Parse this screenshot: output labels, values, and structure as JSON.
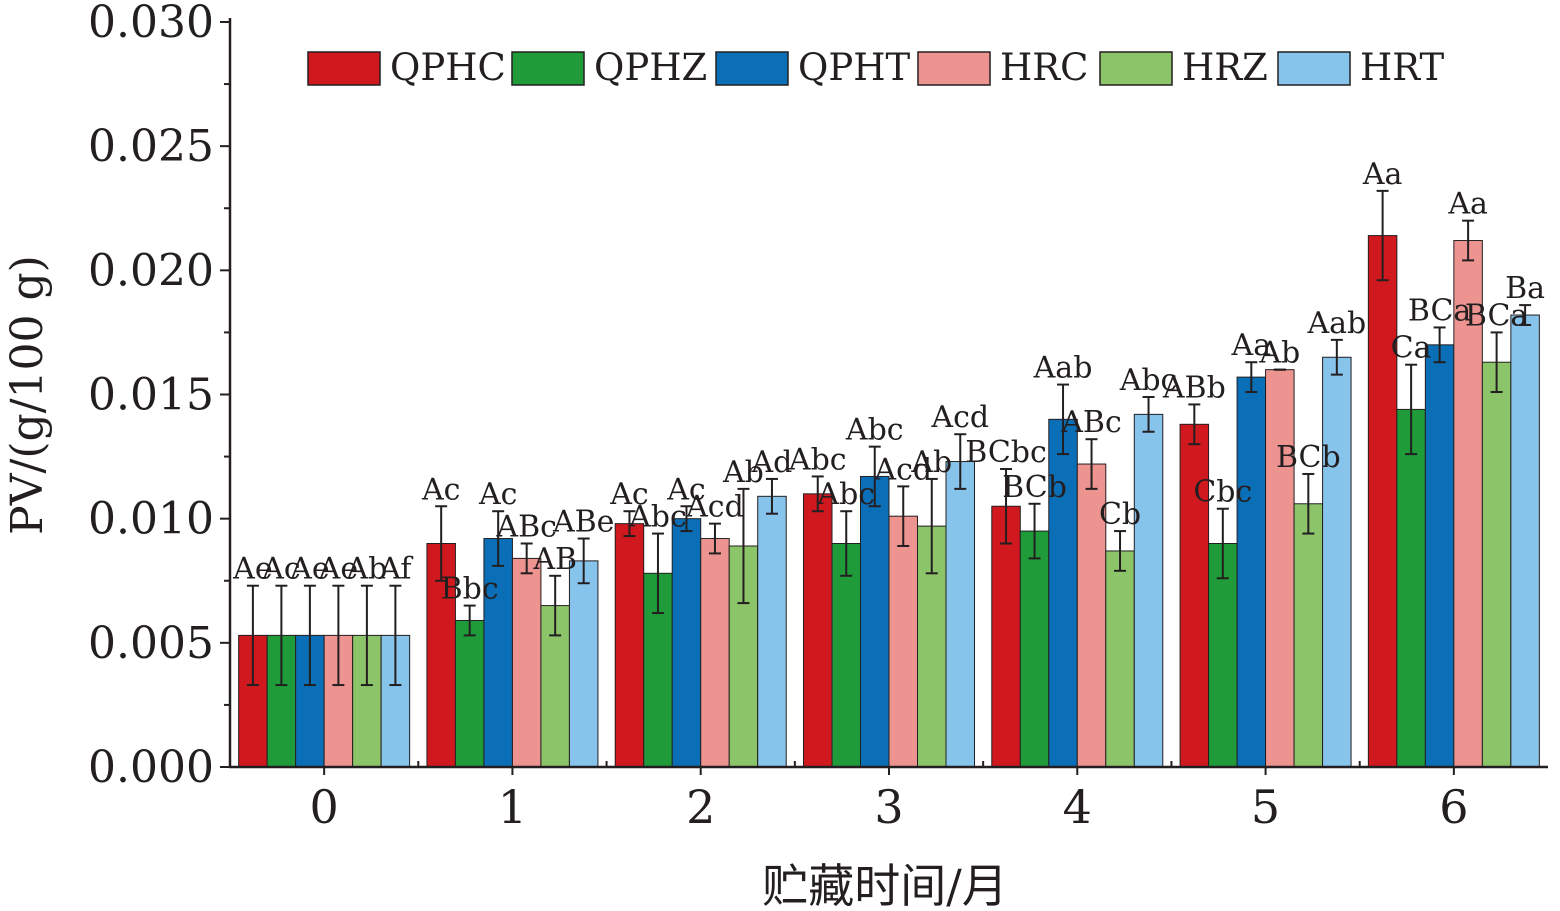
{
  "chart_data": {
    "type": "bar",
    "title": "",
    "xlabel": "贮藏时间/月",
    "ylabel": "PV/(g/100 g)",
    "ylim": [
      0,
      0.03
    ],
    "yticks": [
      "0.000",
      "0.005",
      "0.010",
      "0.015",
      "0.020",
      "0.025",
      "0.030"
    ],
    "categories": [
      "0",
      "1",
      "2",
      "3",
      "4",
      "5",
      "6"
    ],
    "legend_position": "top",
    "series": [
      {
        "name": "QPHC",
        "color": "#d0181f",
        "values": [
          0.0053,
          0.009,
          0.0098,
          0.011,
          0.0105,
          0.0138,
          0.0214
        ],
        "errors": [
          0.002,
          0.0015,
          0.0005,
          0.0007,
          0.0015,
          0.0008,
          0.0018
        ],
        "labels": [
          "Ae",
          "Ac",
          "Ac",
          "Abc",
          "BCbc",
          "ABb",
          "Aa"
        ]
      },
      {
        "name": "QPHZ",
        "color": "#1f9b3a",
        "values": [
          0.0053,
          0.0059,
          0.0078,
          0.009,
          0.0095,
          0.009,
          0.0144
        ],
        "errors": [
          0.002,
          0.0006,
          0.0016,
          0.0013,
          0.0011,
          0.0014,
          0.0018
        ],
        "labels": [
          "Ac",
          "Bbc",
          "Abc",
          "Abc",
          "BCb",
          "Cbc",
          "Ca"
        ]
      },
      {
        "name": "QPHT",
        "color": "#0b6fb8",
        "values": [
          0.0053,
          0.0092,
          0.01,
          0.0117,
          0.014,
          0.0157,
          0.017
        ],
        "errors": [
          0.002,
          0.0011,
          0.0005,
          0.0012,
          0.0014,
          0.0006,
          0.0007
        ],
        "labels": [
          "Ae",
          "Ac",
          "Ac",
          "Abc",
          "Aab",
          "Aa",
          "BCa"
        ]
      },
      {
        "name": "HRC",
        "color": "#ee9490",
        "values": [
          0.0053,
          0.0084,
          0.0092,
          0.0101,
          0.0122,
          0.016,
          0.0212
        ],
        "errors": [
          0.002,
          0.0006,
          0.0006,
          0.0012,
          0.001,
          0.0,
          0.0008
        ],
        "labels": [
          "Ae",
          "ABc",
          "Acd",
          "Acd",
          "ABc",
          "Ab",
          "Aa"
        ]
      },
      {
        "name": "HRZ",
        "color": "#8cc46a",
        "values": [
          0.0053,
          0.0065,
          0.0089,
          0.0097,
          0.0087,
          0.0106,
          0.0163
        ],
        "errors": [
          0.002,
          0.0012,
          0.0023,
          0.0019,
          0.0008,
          0.0012,
          0.0012
        ],
        "labels": [
          "Ab",
          "AB",
          "Ab",
          "Ab",
          "Cb",
          "BCb",
          "BCa"
        ]
      },
      {
        "name": "HRT",
        "color": "#86c4ec",
        "values": [
          0.0053,
          0.0083,
          0.0109,
          0.0123,
          0.0142,
          0.0165,
          0.0182
        ],
        "errors": [
          0.002,
          0.0009,
          0.0007,
          0.0011,
          0.0007,
          0.0007,
          0.0004
        ],
        "labels": [
          "Af",
          "ABe",
          "Ad",
          "Acd",
          "Abc",
          "Aab",
          "Ba"
        ]
      }
    ]
  }
}
